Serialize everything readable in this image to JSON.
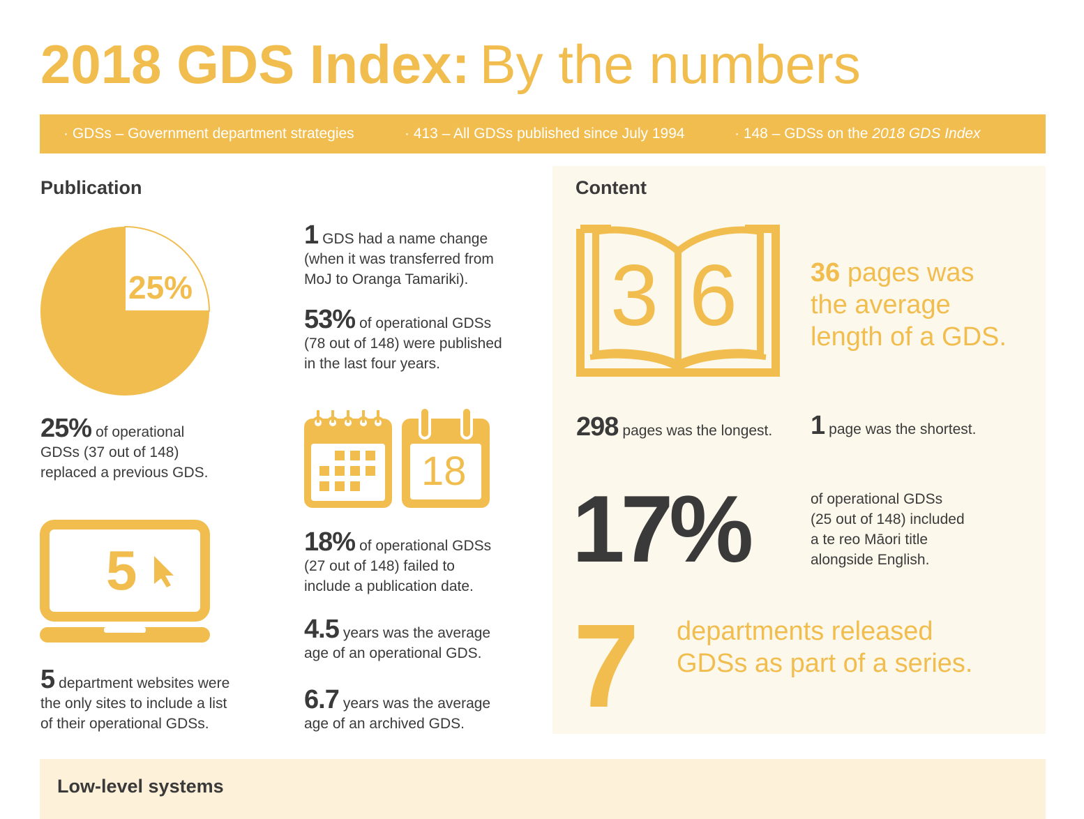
{
  "header": {
    "title_bold": "2018 GDS Index:",
    "title_light": "By the numbers"
  },
  "banner": {
    "item1": "· GDSs – Government department strategies",
    "item2": "· 413 – All GDSs published since July 1994",
    "item3_prefix": "· 148 – GDSs on the ",
    "item3_italic": "2018 GDS Index"
  },
  "publication": {
    "heading": "Publication",
    "pie_label": "25%",
    "pie_value": 0.25,
    "replaced_num": "25%",
    "replaced_text_1": "of operational",
    "replaced_text_2": "GDSs (37 out of 148)",
    "replaced_text_3": "replaced a previous GDS.",
    "laptop_num": "5",
    "websites_num": "5",
    "websites_text_1": "department websites were",
    "websites_text_2": "the only sites to include a list",
    "websites_text_3": "of their operational GDSs.",
    "name_change_num": "1",
    "name_change_text_1": "GDS had a name change",
    "name_change_text_2": "(when it was transferred from",
    "name_change_text_3": "MoJ to Oranga Tamariki).",
    "recent_num": "53%",
    "recent_text_1": "of operational GDSs",
    "recent_text_2": "(78 out of 148) were published",
    "recent_text_3": "in the last four years.",
    "calendar_num": "18",
    "nodate_num": "18%",
    "nodate_text_1": "of operational GDSs",
    "nodate_text_2": "(27 out of 148) failed to",
    "nodate_text_3": "include a publication date.",
    "avg_age_num": "4.5",
    "avg_age_text_1": "years was the average",
    "avg_age_text_2": "age of an operational GDS.",
    "archived_num": "6.7",
    "archived_text_1": "years was the average",
    "archived_text_2": "age of an archived GDS."
  },
  "content": {
    "heading": "Content",
    "book_digit_1": "3",
    "book_digit_2": "6",
    "avg_pages_num": "36",
    "avg_pages_text_1": "pages was",
    "avg_pages_text_2": "the average",
    "avg_pages_text_3": "length of a GDS.",
    "longest_num": "298",
    "longest_text": "pages was the longest.",
    "shortest_num": "1",
    "shortest_text": "page was the shortest.",
    "maori_num": "17%",
    "maori_text_1": "of operational GDSs",
    "maori_text_2": "(25 out of 148) included",
    "maori_text_3": "a te reo Māori title",
    "maori_text_4": "alongside English.",
    "series_num": "7",
    "series_text_1": "departments released",
    "series_text_2": "GDSs as part of a series."
  },
  "low_level": {
    "heading": "Low-level systems"
  },
  "colors": {
    "accent": "#f1bd4f",
    "text": "#3a3a3a",
    "panel": "#fdf8ec",
    "low_panel": "#fdf1d9"
  }
}
